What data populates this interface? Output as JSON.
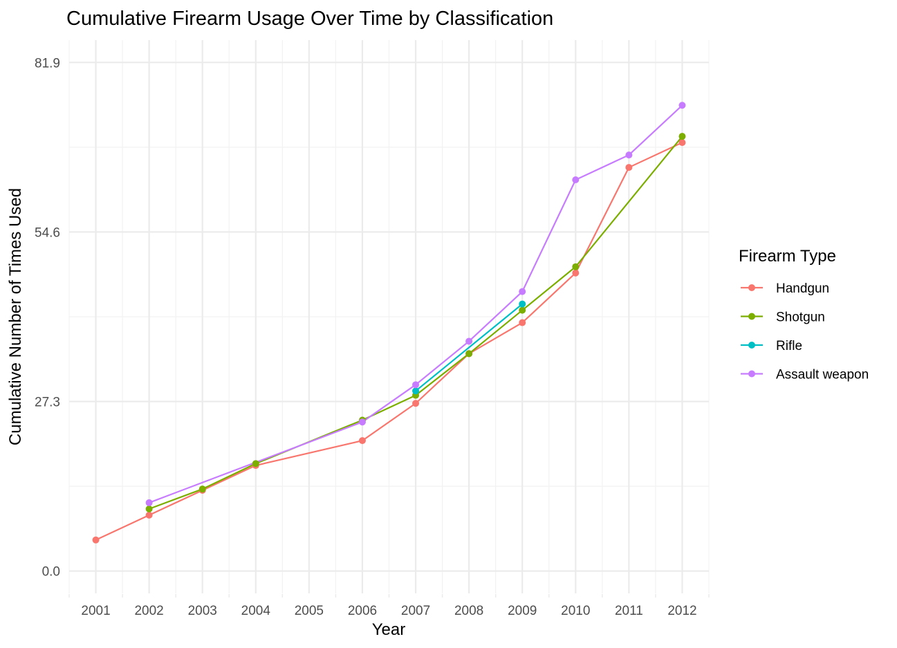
{
  "chart_data": {
    "type": "line",
    "title": "Cumulative Firearm Usage Over Time by Classification",
    "xlabel": "Year",
    "ylabel": "Cumulative Number of Times Used",
    "x_ticks": [
      2001,
      2002,
      2003,
      2004,
      2005,
      2006,
      2007,
      2008,
      2009,
      2010,
      2011,
      2012
    ],
    "y_ticks": [
      0.0,
      27.3,
      54.6,
      81.9
    ],
    "y_tick_labels": [
      "0.0",
      "27.3",
      "54.6",
      "81.9"
    ],
    "xlim": [
      2000.5,
      2012.5
    ],
    "ylim": [
      -3.6,
      85.5
    ],
    "grid": true,
    "legend": {
      "title": "Firearm Type",
      "position": "right"
    },
    "series": [
      {
        "name": "Handgun",
        "color": "#F8766D",
        "points": [
          [
            2001,
            5
          ],
          [
            2002,
            9
          ],
          [
            2003,
            13
          ],
          [
            2004,
            17
          ],
          [
            2006,
            21
          ],
          [
            2007,
            27
          ],
          [
            2008,
            35
          ],
          [
            2009,
            40
          ],
          [
            2010,
            48
          ],
          [
            2011,
            65
          ],
          [
            2012,
            69
          ]
        ]
      },
      {
        "name": "Shotgun",
        "color": "#7CAE00",
        "points": [
          [
            2002,
            10
          ],
          [
            2003,
            13.2
          ],
          [
            2004,
            17.3
          ],
          [
            2006,
            24.3
          ],
          [
            2007,
            28.3
          ],
          [
            2008,
            35
          ],
          [
            2009,
            42
          ],
          [
            2010,
            49
          ],
          [
            2012,
            70
          ]
        ]
      },
      {
        "name": "Rifle",
        "color": "#00BFC4",
        "points": [
          [
            2007,
            29
          ],
          [
            2009,
            43
          ]
        ]
      },
      {
        "name": "Assault weapon",
        "color": "#C77CFF",
        "points": [
          [
            2002,
            11
          ],
          [
            2006,
            24
          ],
          [
            2007,
            30
          ],
          [
            2008,
            37
          ],
          [
            2009,
            45
          ],
          [
            2010,
            63
          ],
          [
            2011,
            67
          ],
          [
            2012,
            75
          ]
        ]
      }
    ]
  }
}
